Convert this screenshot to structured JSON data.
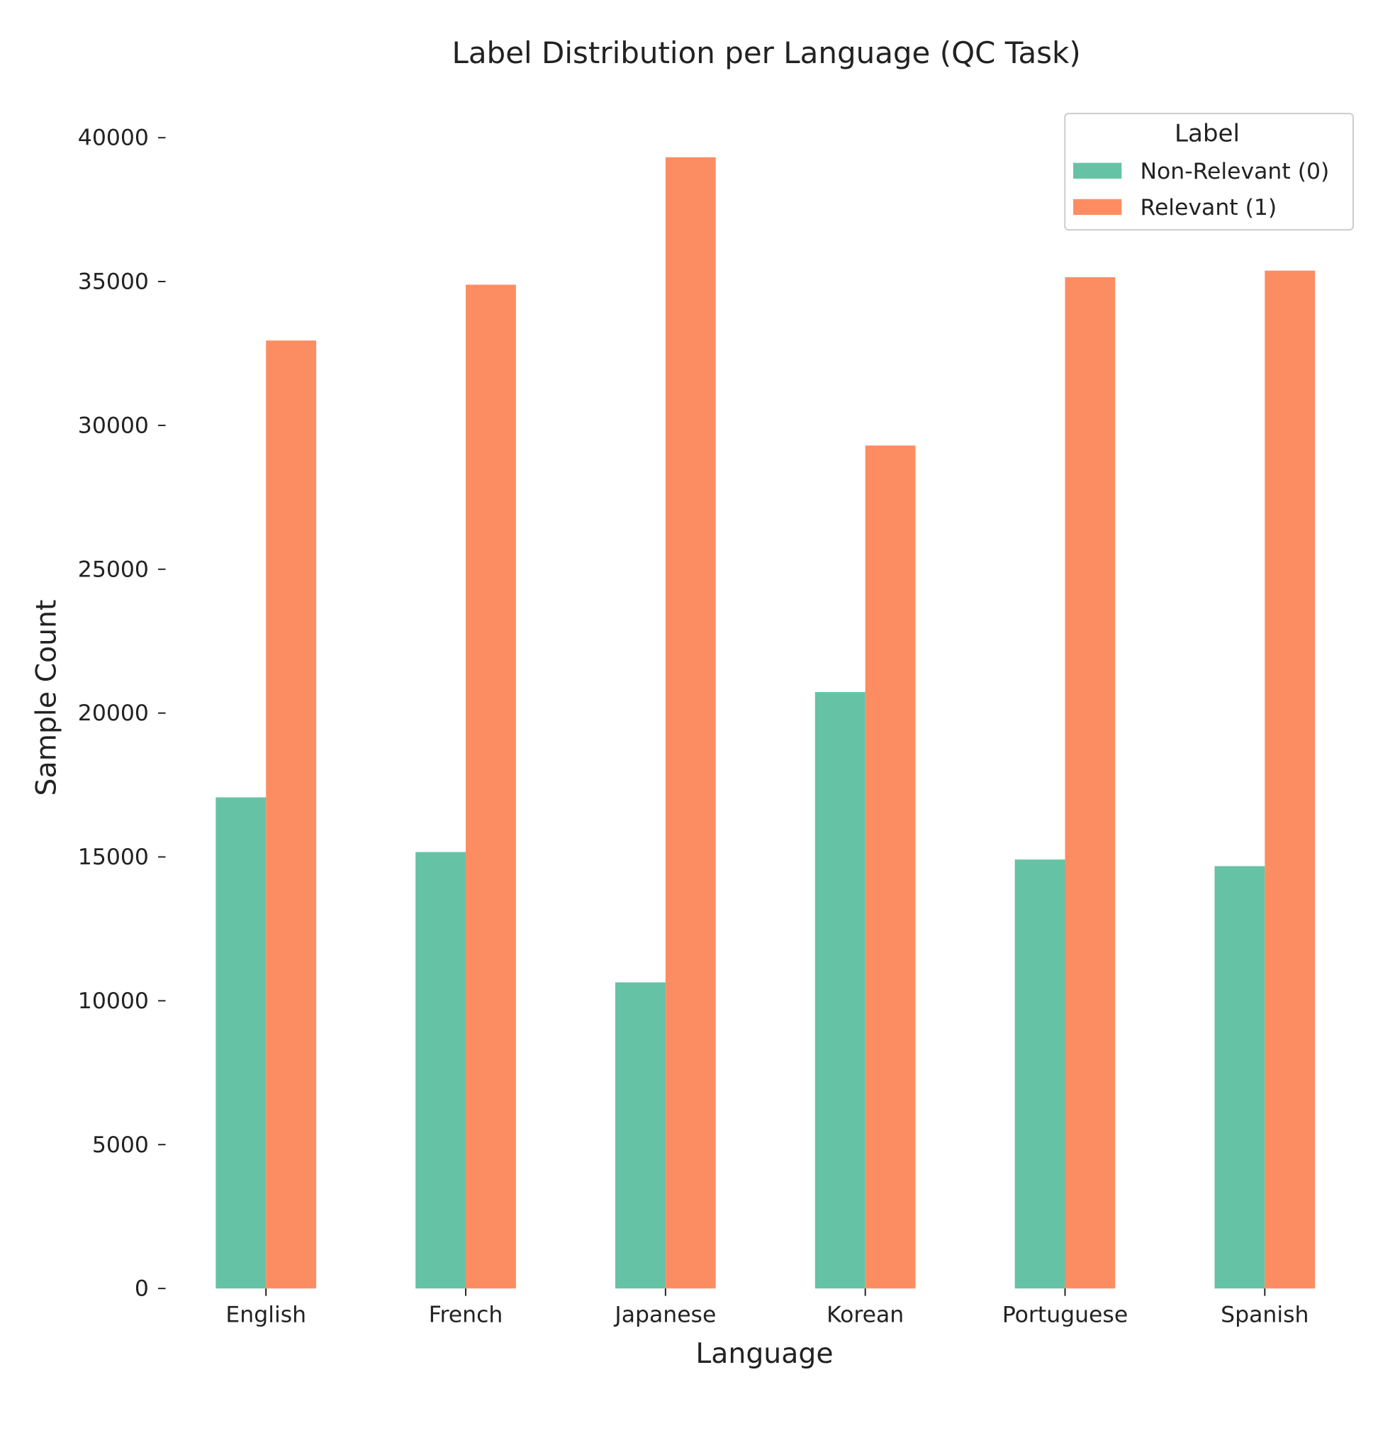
{
  "chart_data": {
    "type": "bar",
    "title": "Label Distribution per Language (QC Task)",
    "xlabel": "Language",
    "ylabel": "Sample Count",
    "categories": [
      "English",
      "French",
      "Japanese",
      "Korean",
      "Portuguese",
      "Spanish"
    ],
    "series": [
      {
        "name": "Non-Relevant (0)",
        "color": "#66c2a5",
        "values": [
          17070,
          15170,
          10640,
          20730,
          14910,
          14680
        ]
      },
      {
        "name": "Relevant (1)",
        "color": "#fc8d62",
        "values": [
          32950,
          34890,
          39320,
          29300,
          35150,
          35380
        ]
      }
    ],
    "ylim": [
      0,
      40000
    ],
    "yticks": [
      0,
      5000,
      10000,
      15000,
      20000,
      25000,
      30000,
      35000,
      40000
    ],
    "grid": false,
    "legend": {
      "title": "Label",
      "placement": "top-right"
    }
  }
}
